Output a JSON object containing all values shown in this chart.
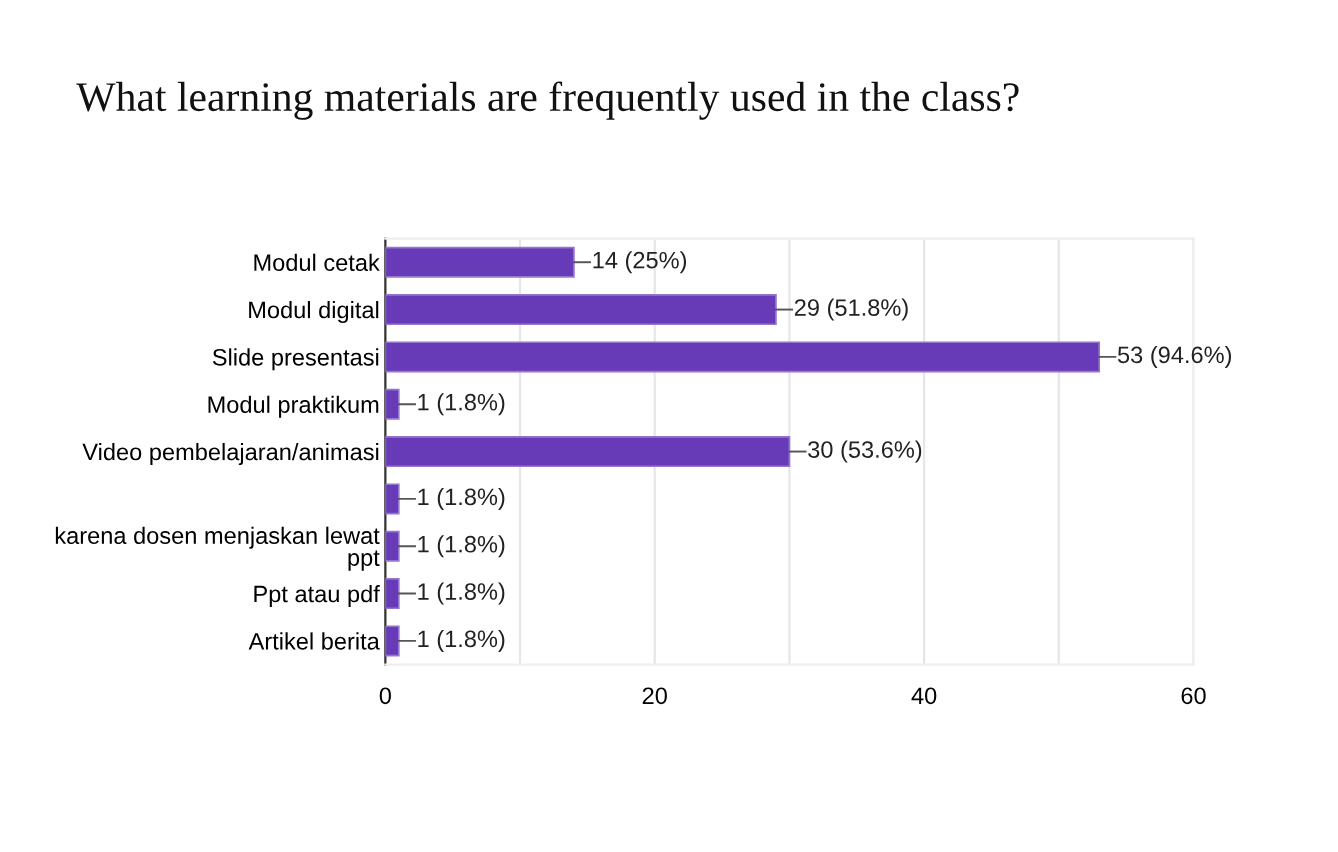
{
  "chart_data": {
    "type": "bar",
    "orientation": "horizontal",
    "title": "What learning materials are frequently used in the class?",
    "categories": [
      "Modul cetak",
      "Modul digital",
      "Slide presentasi",
      "Modul praktikum",
      "Video pembelajaran/animasi",
      null,
      "karena dosen menjaskan lewat\nppt",
      "Ppt atau pdf",
      "Artikel berita"
    ],
    "values": [
      14,
      29,
      53,
      1,
      30,
      1,
      1,
      1,
      1
    ],
    "value_labels": [
      "14 (25%)",
      "29 (51.8%)",
      "53 (94.6%)",
      "1 (1.8%)",
      "30 (53.6%)",
      "1 (1.8%)",
      "1 (1.8%)",
      "1 (1.8%)",
      "1 (1.8%)"
    ],
    "color": "#673ab7",
    "xlim": [
      0,
      60
    ],
    "xticks": [
      0,
      {
        "value": 10,
        "label": null
      },
      20,
      {
        "value": 30,
        "label": null
      },
      40,
      {
        "value": 50,
        "label": null
      },
      60
    ],
    "grid": "x",
    "legend": false
  }
}
